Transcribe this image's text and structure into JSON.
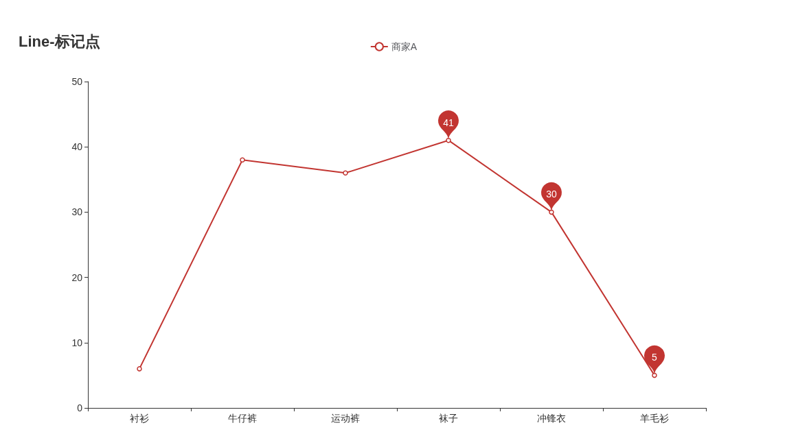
{
  "chart_data": {
    "type": "line",
    "title": "Line-标记点",
    "categories": [
      "衬衫",
      "牛仔裤",
      "运动裤",
      "袜子",
      "冲锋衣",
      "羊毛衫"
    ],
    "series": [
      {
        "name": "商家A",
        "color": "#c23531",
        "values": [
          6,
          38,
          36,
          41,
          30,
          5
        ],
        "value_labels": [
          null,
          null,
          null,
          "41",
          "30",
          "5"
        ]
      }
    ],
    "ylim": [
      0,
      50
    ],
    "yticks": [
      0,
      10,
      20,
      30,
      40,
      50
    ],
    "grid": false,
    "legend": "top",
    "marker": "circle"
  }
}
